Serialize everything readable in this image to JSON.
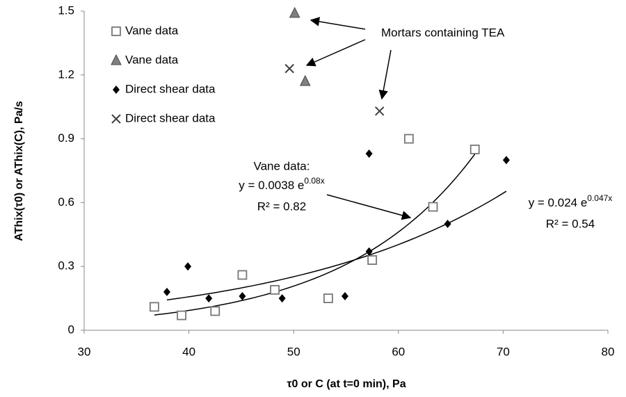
{
  "chart_data": {
    "type": "scatter",
    "x_label": "τ0 or C (at t=0 min), Pa",
    "y_label": "AThix(τ0) or AThix(C), Pa/s",
    "xlim": [
      30,
      80
    ],
    "xticks": [
      30,
      40,
      50,
      60,
      70,
      80
    ],
    "ylim": [
      0,
      1.5
    ],
    "yticks": [
      0,
      0.3,
      0.6,
      0.9,
      1.2,
      1.5
    ],
    "series": [
      {
        "name": "Vane data",
        "marker": "square",
        "color": "#777777",
        "x": [
          36.7,
          39.3,
          42.5,
          45.1,
          48.2,
          53.3,
          57.5,
          61,
          63.3,
          67.3
        ],
        "y": [
          0.11,
          0.07,
          0.09,
          0.26,
          0.19,
          0.15,
          0.33,
          0.9,
          0.58,
          0.85
        ]
      },
      {
        "name": "Vane data",
        "marker": "triangle",
        "color": "#808080",
        "x": [
          50.1,
          51.1
        ],
        "y": [
          1.49,
          1.17
        ]
      },
      {
        "name": "Direct shear data",
        "marker": "diamond",
        "color": "#000000",
        "x": [
          37.9,
          39.9,
          41.9,
          45.1,
          48.9,
          54.9,
          57.2,
          57.2,
          64.7,
          70.3
        ],
        "y": [
          0.18,
          0.3,
          0.15,
          0.16,
          0.15,
          0.16,
          0.37,
          0.83,
          0.5,
          0.8
        ]
      },
      {
        "name": "Direct shear data",
        "marker": "x",
        "color": "#404040",
        "x": [
          49.6,
          58.2
        ],
        "y": [
          1.23,
          1.03
        ]
      }
    ],
    "trendlines": [
      {
        "series": 0,
        "a": 0.0038,
        "b": 0.08,
        "title": "Vane data:",
        "equation": "y = 0.0038 e",
        "exponent": "0.08x",
        "r2_label": "R² = 0.82"
      },
      {
        "series": 2,
        "a": 0.024,
        "b": 0.047,
        "equation": "y = 0.024 e",
        "exponent": "0.047x",
        "r2_label": "R² = 0.54"
      }
    ],
    "annotation": "Mortars containing TEA"
  }
}
